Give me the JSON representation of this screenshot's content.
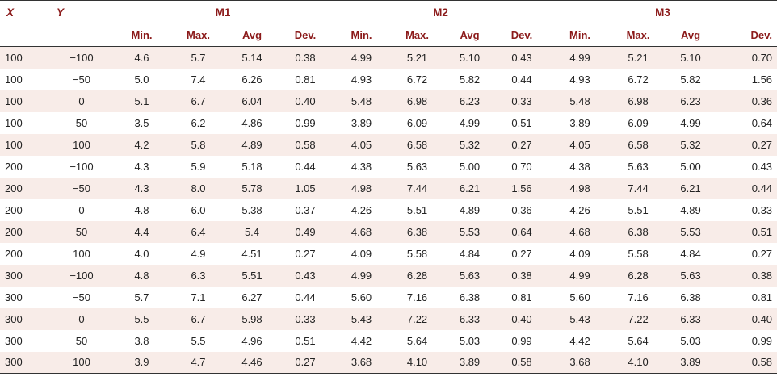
{
  "table": {
    "headers": {
      "x": "X",
      "y": "Y",
      "groups": [
        "M1",
        "M2",
        "M3"
      ],
      "sub": [
        "Min.",
        "Max.",
        "Avg",
        "Dev."
      ]
    },
    "rows": [
      [
        "100",
        "−100",
        "4.6",
        "5.7",
        "5.14",
        "0.38",
        "4.99",
        "5.21",
        "5.10",
        "0.43",
        "4.99",
        "5.21",
        "5.10",
        "0.70"
      ],
      [
        "100",
        "−50",
        "5.0",
        "7.4",
        "6.26",
        "0.81",
        "4.93",
        "6.72",
        "5.82",
        "0.44",
        "4.93",
        "6.72",
        "5.82",
        "1.56"
      ],
      [
        "100",
        "0",
        "5.1",
        "6.7",
        "6.04",
        "0.40",
        "5.48",
        "6.98",
        "6.23",
        "0.33",
        "5.48",
        "6.98",
        "6.23",
        "0.36"
      ],
      [
        "100",
        "50",
        "3.5",
        "6.2",
        "4.86",
        "0.99",
        "3.89",
        "6.09",
        "4.99",
        "0.51",
        "3.89",
        "6.09",
        "4.99",
        "0.64"
      ],
      [
        "100",
        "100",
        "4.2",
        "5.8",
        "4.89",
        "0.58",
        "4.05",
        "6.58",
        "5.32",
        "0.27",
        "4.05",
        "6.58",
        "5.32",
        "0.27"
      ],
      [
        "200",
        "−100",
        "4.3",
        "5.9",
        "5.18",
        "0.44",
        "4.38",
        "5.63",
        "5.00",
        "0.70",
        "4.38",
        "5.63",
        "5.00",
        "0.43"
      ],
      [
        "200",
        "−50",
        "4.3",
        "8.0",
        "5.78",
        "1.05",
        "4.98",
        "7.44",
        "6.21",
        "1.56",
        "4.98",
        "7.44",
        "6.21",
        "0.44"
      ],
      [
        "200",
        "0",
        "4.8",
        "6.0",
        "5.38",
        "0.37",
        "4.26",
        "5.51",
        "4.89",
        "0.36",
        "4.26",
        "5.51",
        "4.89",
        "0.33"
      ],
      [
        "200",
        "50",
        "4.4",
        "6.4",
        "5.4",
        "0.49",
        "4.68",
        "6.38",
        "5.53",
        "0.64",
        "4.68",
        "6.38",
        "5.53",
        "0.51"
      ],
      [
        "200",
        "100",
        "4.0",
        "4.9",
        "4.51",
        "0.27",
        "4.09",
        "5.58",
        "4.84",
        "0.27",
        "4.09",
        "5.58",
        "4.84",
        "0.27"
      ],
      [
        "300",
        "−100",
        "4.8",
        "6.3",
        "5.51",
        "0.43",
        "4.99",
        "6.28",
        "5.63",
        "0.38",
        "4.99",
        "6.28",
        "5.63",
        "0.38"
      ],
      [
        "300",
        "−50",
        "5.7",
        "7.1",
        "6.27",
        "0.44",
        "5.60",
        "7.16",
        "6.38",
        "0.81",
        "5.60",
        "7.16",
        "6.38",
        "0.81"
      ],
      [
        "300",
        "0",
        "5.5",
        "6.7",
        "5.98",
        "0.33",
        "5.43",
        "7.22",
        "6.33",
        "0.40",
        "5.43",
        "7.22",
        "6.33",
        "0.40"
      ],
      [
        "300",
        "50",
        "3.8",
        "5.5",
        "4.96",
        "0.51",
        "4.42",
        "5.64",
        "5.03",
        "0.99",
        "4.42",
        "5.64",
        "5.03",
        "0.99"
      ],
      [
        "300",
        "100",
        "3.9",
        "4.7",
        "4.46",
        "0.27",
        "3.68",
        "4.10",
        "3.89",
        "0.58",
        "3.68",
        "4.10",
        "3.89",
        "0.58"
      ]
    ]
  }
}
